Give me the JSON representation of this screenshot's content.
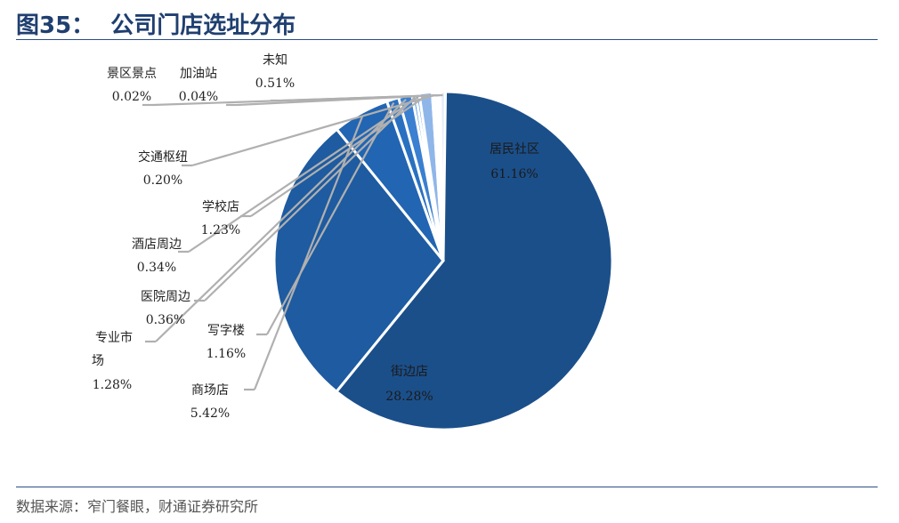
{
  "header": {
    "figure_no": "图35：",
    "title": "公司门店选址分布"
  },
  "footer": {
    "source": "数据来源：窄门餐眼，财通证券研究所"
  },
  "chart_data": {
    "type": "pie",
    "title": "公司门店选址分布",
    "legend": "none",
    "slices": [
      {
        "name": "居民社区",
        "value": 61.16,
        "label": "61.16%",
        "color": "#1b4f8a"
      },
      {
        "name": "街边店",
        "value": 28.28,
        "label": "28.28%",
        "color": "#1e5ba0"
      },
      {
        "name": "商场店",
        "value": 5.42,
        "label": "5.42%",
        "color": "#2265b2"
      },
      {
        "name": "写字楼",
        "value": 1.16,
        "label": "1.16%",
        "color": "#2a70c0"
      },
      {
        "name": "专业市场",
        "value": 1.28,
        "label": "1.28%",
        "color": "#3a7fd0"
      },
      {
        "name": "医院周边",
        "value": 0.36,
        "label": "0.36%",
        "color": "#4b8ed8"
      },
      {
        "name": "酒店周边",
        "value": 0.34,
        "label": "0.34%",
        "color": "#5e9ddf"
      },
      {
        "name": "学校店",
        "value": 1.23,
        "label": "1.23%",
        "color": "#8fb6e9"
      },
      {
        "name": "交通枢纽",
        "value": 0.2,
        "label": "0.20%",
        "color": "#a8c6ee"
      },
      {
        "name": "加油站",
        "value": 0.04,
        "label": "0.04%",
        "color": "#c2d7f2"
      },
      {
        "name": "景区景点",
        "value": 0.02,
        "label": "0.02%",
        "color": "#d6e4f6"
      },
      {
        "name": "未知",
        "value": 0.51,
        "label": "0.51%",
        "color": "#e6eef9"
      }
    ]
  }
}
